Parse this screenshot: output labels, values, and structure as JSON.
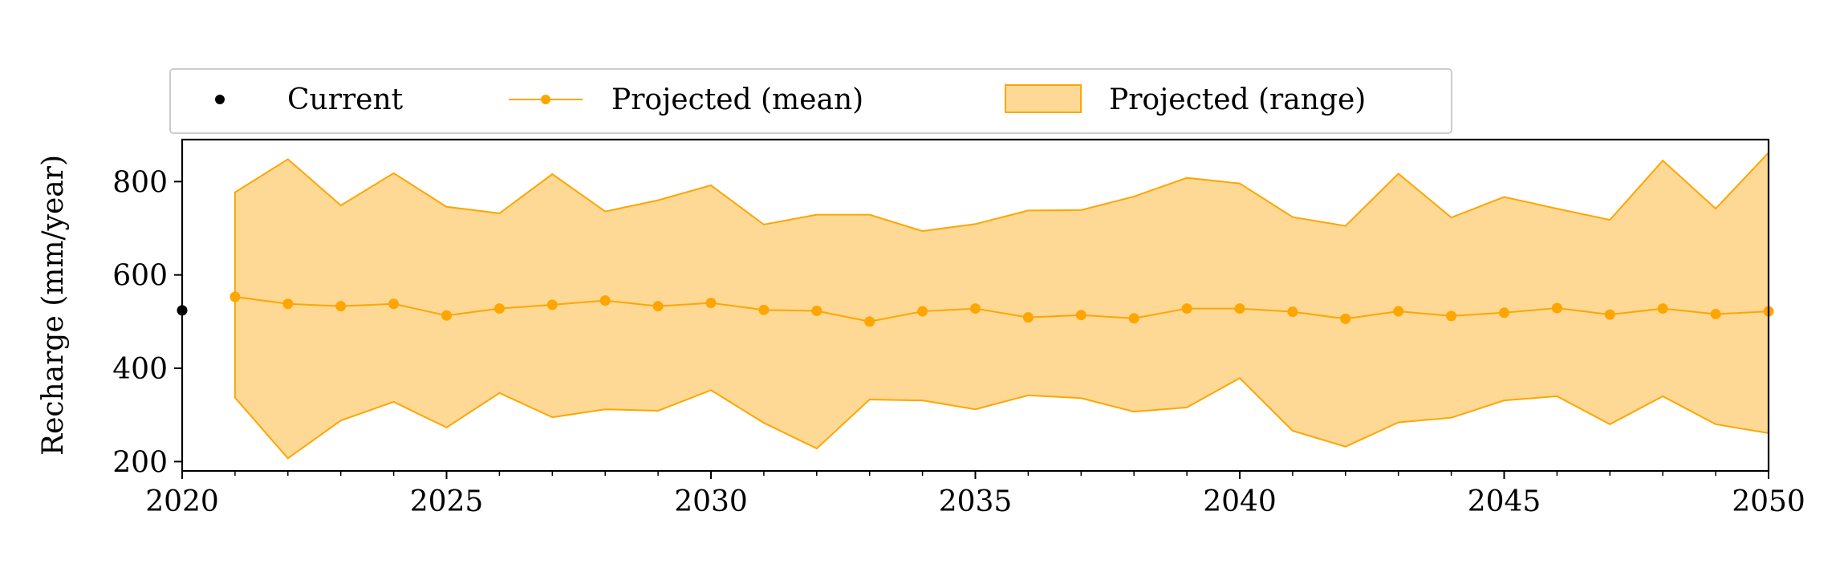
{
  "chart_data": {
    "type": "line",
    "title": "",
    "xlabel": "",
    "ylabel": "Recharge (mm/year)",
    "xlim": [
      2020,
      2050
    ],
    "ylim": [
      180,
      890
    ],
    "x_ticks": [
      2020,
      2025,
      2030,
      2035,
      2040,
      2045,
      2050
    ],
    "x_minor_ticks": [
      2021,
      2022,
      2023,
      2024,
      2026,
      2027,
      2028,
      2029,
      2031,
      2032,
      2033,
      2034,
      2036,
      2037,
      2038,
      2039,
      2041,
      2042,
      2043,
      2044,
      2046,
      2047,
      2048,
      2049
    ],
    "y_ticks": [
      200,
      400,
      600,
      800
    ],
    "grid": false,
    "legend": {
      "placement": "top (above plot)",
      "entries": [
        "Current",
        "Projected (mean)",
        "Projected (range)"
      ]
    },
    "colors": {
      "current": "#000000",
      "projected_mean": "#FFA500",
      "range_fill": "#FDD995",
      "range_edge": "#FFA500"
    },
    "series": [
      {
        "name": "Current",
        "kind": "scatter",
        "x": [
          2020
        ],
        "y": [
          524
        ]
      },
      {
        "name": "Projected (mean)",
        "kind": "line",
        "x": [
          2021,
          2022,
          2023,
          2024,
          2025,
          2026,
          2027,
          2028,
          2029,
          2030,
          2031,
          2032,
          2033,
          2034,
          2035,
          2036,
          2037,
          2038,
          2039,
          2040,
          2041,
          2042,
          2043,
          2044,
          2045,
          2046,
          2047,
          2048,
          2049,
          2050
        ],
        "y": [
          553,
          538,
          533,
          538,
          513,
          528,
          536,
          545,
          533,
          540,
          525,
          523,
          500,
          522,
          528,
          509,
          514,
          507,
          528,
          528,
          521,
          506,
          522,
          512,
          519,
          529,
          515,
          528,
          516,
          522
        ]
      },
      {
        "name": "Projected (range)",
        "kind": "band",
        "x": [
          2021,
          2022,
          2023,
          2024,
          2025,
          2026,
          2027,
          2028,
          2029,
          2030,
          2031,
          2032,
          2033,
          2034,
          2035,
          2036,
          2037,
          2038,
          2039,
          2040,
          2041,
          2042,
          2043,
          2044,
          2045,
          2046,
          2047,
          2048,
          2049,
          2050
        ],
        "upper": [
          777,
          848,
          749,
          818,
          746,
          732,
          816,
          736,
          760,
          792,
          708,
          729,
          729,
          694,
          709,
          738,
          739,
          768,
          808,
          796,
          724,
          705,
          817,
          723,
          767,
          742,
          718,
          845,
          742,
          862
        ],
        "lower": [
          337,
          207,
          288,
          328,
          273,
          347,
          295,
          312,
          309,
          353,
          283,
          228,
          333,
          331,
          312,
          342,
          336,
          307,
          316,
          379,
          266,
          232,
          284,
          294,
          331,
          340,
          280,
          340,
          280,
          261
        ]
      }
    ]
  }
}
